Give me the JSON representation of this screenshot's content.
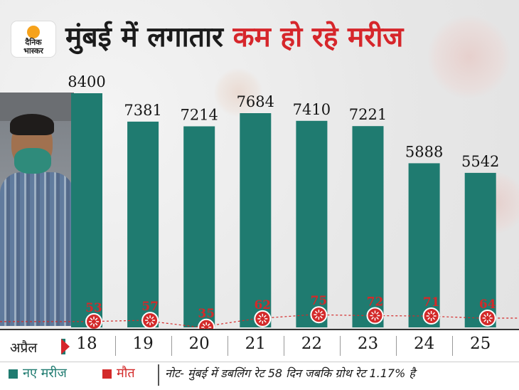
{
  "header": {
    "logo_line1": "दैनिक",
    "logo_line2": "भास्कर",
    "title_part1": "मुंबई में लगातार",
    "title_part2": "कम हो रहे मरीज"
  },
  "axis": {
    "month_label": "अप्रैल"
  },
  "legend": {
    "new_patients": "नए मरीज",
    "deaths": "मौत"
  },
  "footer": {
    "note": "नोट- मुंबई में डबलिंग रेट 58 दिन जबकि ग्रोथ रेट 1.17% है"
  },
  "colors": {
    "bar": "#1f7b70",
    "death": "#d32a2a",
    "title_accent": "#d6262b"
  },
  "chart_data": {
    "type": "bar",
    "categories": [
      "18",
      "19",
      "20",
      "21",
      "22",
      "23",
      "24",
      "25"
    ],
    "series": [
      {
        "name": "नए मरीज",
        "values": [
          8400,
          7381,
          7214,
          7684,
          7410,
          7221,
          5888,
          5542
        ]
      },
      {
        "name": "मौत",
        "values": [
          53,
          57,
          35,
          62,
          75,
          72,
          71,
          64
        ]
      }
    ],
    "xlabel": "अप्रैल",
    "ylabel": "",
    "ylim": [
      0,
      8400
    ]
  }
}
